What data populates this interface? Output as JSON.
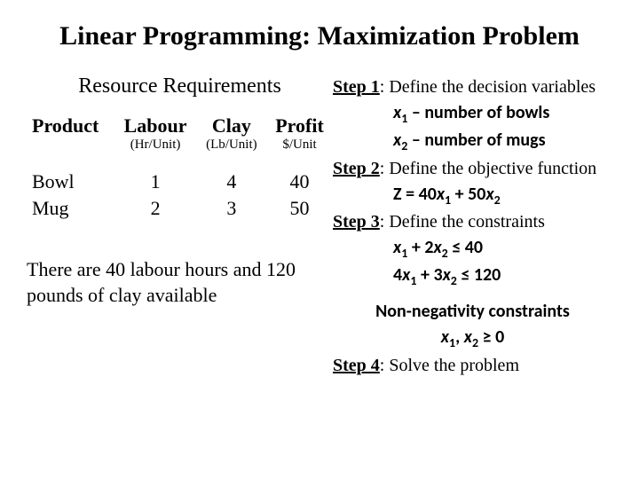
{
  "title": "Linear Programming: Maximization Problem",
  "left": {
    "subtitle": "Resource Requirements",
    "table": {
      "headers": [
        "Product",
        "Labour",
        "Clay",
        "Profit"
      ],
      "units": [
        "",
        "(Hr/Unit)",
        "(Lb/Unit)",
        "$/Unit"
      ],
      "rows": [
        [
          "Bowl",
          "1",
          "4",
          "40"
        ],
        [
          "Mug",
          "2",
          "3",
          "50"
        ]
      ]
    },
    "note": "There are 40 labour hours and 120 pounds of clay available"
  },
  "right": {
    "step1_label": "Step 1",
    "step1_text": ": Define the decision variables",
    "x1_def_pre": "x",
    "x1_sub": "1",
    "x1_def_post": " – number of bowls",
    "x2_def_pre": "x",
    "x2_sub": "2",
    "x2_def_post": " – number of mugs",
    "step2_label": "Step 2",
    "step2_text": ": Define the objective function",
    "obj_pre": "Z = 40",
    "obj_x1": "x",
    "obj_s1": "1",
    "obj_mid": " + 50",
    "obj_x2": "x",
    "obj_s2": "2",
    "step3_label": "Step 3",
    "step3_text": ": Define the constraints",
    "c1_a": "x",
    "c1_s1": "1",
    "c1_b": " + 2",
    "c1_x2": "x",
    "c1_s2": "2",
    "c1_c": " ≤ 40",
    "c2_a": "4",
    "c2_x1": "x",
    "c2_s1": "1",
    "c2_b": " + 3",
    "c2_x2": "x",
    "c2_s2": "2",
    "c2_c": " ≤ 120",
    "nn_title": "Non-negativity constraints",
    "nn_x1": "x",
    "nn_s1": "1",
    "nn_sep": ", ",
    "nn_x2": "x",
    "nn_s2": "2",
    "nn_tail": "  ≥ 0",
    "step4_label": "Step 4",
    "step4_text": ": Solve the problem"
  }
}
